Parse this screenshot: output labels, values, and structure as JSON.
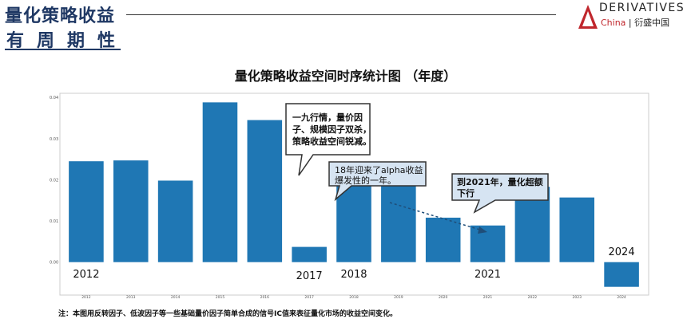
{
  "header": {
    "title_line1": "量化策略收益",
    "title_line2": "有周期性",
    "logo_line1": "DERIVATIVES",
    "logo_line2_en": "China",
    "logo_line2_cn": "衍盛中国"
  },
  "footnote": "注：本图用反转因子、低波因子等一些基础量价因子简单合成的信号IC值来表征量化市场的收益空间变化。",
  "chart_data": {
    "type": "bar",
    "title": "量化策略收益空间时序统计图 （年度）",
    "categories": [
      "2012",
      "2013",
      "2014",
      "2015",
      "2016",
      "2017",
      "2018",
      "2019",
      "2020",
      "2021",
      "2022",
      "2023",
      "2024"
    ],
    "values": [
      0.0245,
      0.0247,
      0.0198,
      0.0388,
      0.0345,
      0.0037,
      0.0189,
      0.0204,
      0.0108,
      0.0089,
      0.0183,
      0.0157,
      -0.006
    ],
    "ylim": [
      -0.008,
      0.041
    ],
    "yticks": [
      "0.00",
      "0.01",
      "0.02",
      "0.03",
      "0.04"
    ],
    "ytick_values": [
      0,
      0.01,
      0.02,
      0.03,
      0.04
    ],
    "bar_color": "#1f77b4",
    "year_labels": [
      {
        "text": "2012",
        "category": "2012"
      },
      {
        "text": "2017",
        "category": "2017"
      },
      {
        "text": "2018",
        "category": "2018"
      },
      {
        "text": "2021",
        "category": "2021"
      },
      {
        "text": "2024",
        "category": "2024"
      }
    ],
    "annotations": [
      {
        "text": "一九行情，量价因子、规模因子双杀，策略收益空间锐减。"
      },
      {
        "text": "18年迎来了alpha收益爆发性的一年。"
      },
      {
        "text": "到2021年，量化超额下行"
      }
    ]
  }
}
